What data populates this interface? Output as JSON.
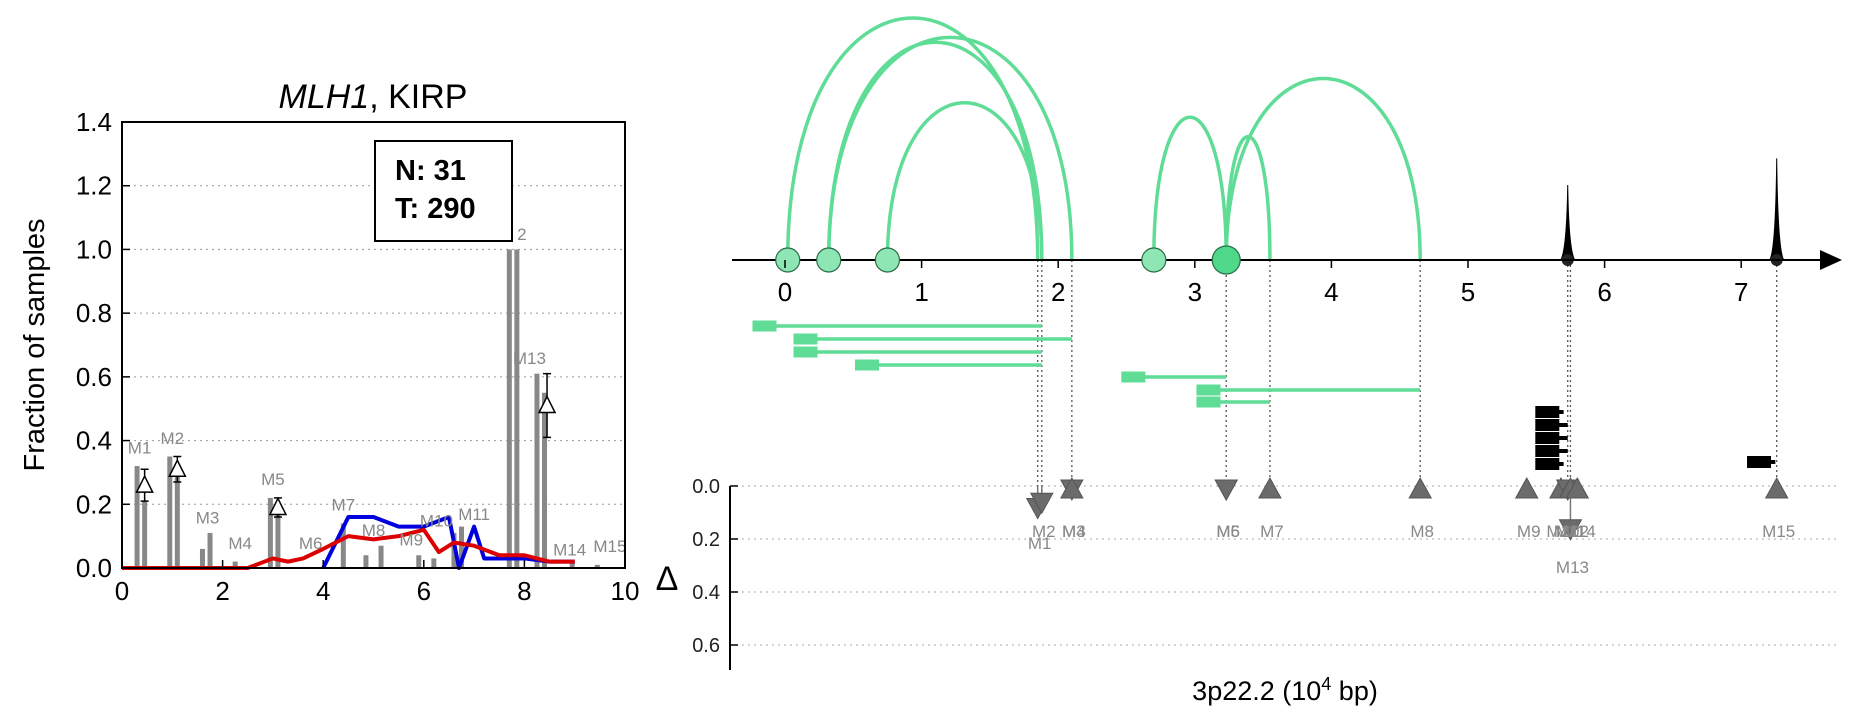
{
  "chart_data": [
    {
      "type": "bar",
      "title_gene": "MLH1",
      "title_rest": ", KIRP",
      "xlabel": "",
      "ylabel": "Fraction of samples",
      "xlim": [
        0,
        10
      ],
      "ylim": [
        0,
        1.4
      ],
      "xticks": [
        "0",
        "2",
        "4",
        "6",
        "8",
        "10"
      ],
      "yticks": [
        "0.0",
        "0.2",
        "0.4",
        "0.6",
        "0.8",
        "1.0",
        "1.2",
        "1.4"
      ],
      "grid": "horizontal dotted",
      "info_box": {
        "n_label": "N: 31",
        "t_label": "T: 290"
      },
      "bars": [
        {
          "x": 0.3,
          "value": 0.32
        },
        {
          "x": 0.45,
          "value": 0.21
        },
        {
          "x": 0.95,
          "value": 0.35
        },
        {
          "x": 1.1,
          "value": 0.31
        },
        {
          "x": 1.6,
          "value": 0.06
        },
        {
          "x": 1.75,
          "value": 0.11
        },
        {
          "x": 2.25,
          "value": 0.02
        },
        {
          "x": 2.95,
          "value": 0.22
        },
        {
          "x": 3.1,
          "value": 0.17
        },
        {
          "x": 4.4,
          "value": 0.14
        },
        {
          "x": 4.85,
          "value": 0.04
        },
        {
          "x": 5.15,
          "value": 0.07
        },
        {
          "x": 5.9,
          "value": 0.04
        },
        {
          "x": 6.2,
          "value": 0.03
        },
        {
          "x": 6.6,
          "value": 0.11
        },
        {
          "x": 6.75,
          "value": 0.13
        },
        {
          "x": 7.7,
          "value": 1.0
        },
        {
          "x": 7.85,
          "value": 1.0
        },
        {
          "x": 8.25,
          "value": 0.61
        },
        {
          "x": 8.4,
          "value": 0.55
        },
        {
          "x": 8.95,
          "value": 0.02
        },
        {
          "x": 9.45,
          "value": 0.01
        }
      ],
      "bar_labels": [
        {
          "text": "M1",
          "x": 0.35,
          "y": 0.36
        },
        {
          "text": "M2",
          "x": 1.0,
          "y": 0.39
        },
        {
          "text": "M3",
          "x": 1.7,
          "y": 0.14
        },
        {
          "text": "M4",
          "x": 2.35,
          "y": 0.06
        },
        {
          "text": "M5",
          "x": 3.0,
          "y": 0.26
        },
        {
          "text": "M6",
          "x": 3.75,
          "y": 0.06
        },
        {
          "text": "M7",
          "x": 4.4,
          "y": 0.18
        },
        {
          "text": "M8",
          "x": 5.0,
          "y": 0.1
        },
        {
          "text": "M9",
          "x": 5.75,
          "y": 0.07
        },
        {
          "text": "M10",
          "x": 6.25,
          "y": 0.13
        },
        {
          "text": "M11",
          "x": 7.0,
          "y": 0.15
        },
        {
          "text": "2",
          "x": 7.95,
          "y": 1.03
        },
        {
          "text": "M13",
          "x": 8.1,
          "y": 0.64
        },
        {
          "text": "M14",
          "x": 8.9,
          "y": 0.04
        },
        {
          "text": "M15",
          "x": 9.7,
          "y": 0.05
        }
      ],
      "delta_markers": [
        {
          "x": 0.45,
          "value": 0.26,
          "err": 0.05
        },
        {
          "x": 1.1,
          "value": 0.31,
          "err": 0.04
        },
        {
          "x": 3.1,
          "value": 0.19,
          "err": 0.03
        },
        {
          "x": 8.45,
          "value": 0.51,
          "err": 0.1
        }
      ],
      "series": [
        {
          "color": "#0000dd",
          "x": [
            4.0,
            4.5,
            5.0,
            5.5,
            6.0,
            6.5,
            6.7,
            7.0,
            7.2,
            7.5,
            8.0,
            8.5,
            9.0
          ],
          "values": [
            0.0,
            0.16,
            0.16,
            0.13,
            0.13,
            0.16,
            0.0,
            0.13,
            0.03,
            0.03,
            0.03,
            0.02,
            0.02
          ]
        },
        {
          "color": "#dd0000",
          "x": [
            0.0,
            1.0,
            2.0,
            2.5,
            3.0,
            3.3,
            3.6,
            4.0,
            4.5,
            5.0,
            5.5,
            6.0,
            6.3,
            6.6,
            7.0,
            7.5,
            8.0,
            8.5,
            9.0
          ],
          "values": [
            0.0,
            0.0,
            0.0,
            0.0,
            0.03,
            0.02,
            0.03,
            0.06,
            0.1,
            0.09,
            0.1,
            0.12,
            0.05,
            0.08,
            0.07,
            0.04,
            0.04,
            0.02,
            0.02
          ]
        }
      ]
    },
    {
      "type": "diagram",
      "xlabel_main": "3p22.2 (10",
      "xlabel_sup": "4",
      "xlabel_tail": " bp)",
      "delta_label": "Δ",
      "xlim": [
        -0.4,
        7.5
      ],
      "xticks": [
        "0",
        "1",
        "2",
        "3",
        "4",
        "5",
        "6",
        "7"
      ],
      "delta_ticks": [
        "0.0",
        "0.2",
        "0.4",
        "0.6"
      ],
      "arc_color": "#5fdc95",
      "nodes": [
        {
          "x": 0.02,
          "size": "medium"
        },
        {
          "x": 0.32,
          "size": "medium"
        },
        {
          "x": 0.75,
          "size": "medium"
        },
        {
          "x": 2.7,
          "size": "medium"
        },
        {
          "x": 3.23,
          "size": "large"
        }
      ],
      "arcs": [
        {
          "from": 0.02,
          "to": 1.85,
          "height": 1.0
        },
        {
          "from": 0.32,
          "to": 1.88,
          "height": 0.9
        },
        {
          "from": 0.32,
          "to": 2.1,
          "height": 0.92
        },
        {
          "from": 0.75,
          "to": 1.88,
          "height": 0.65
        },
        {
          "from": 2.7,
          "to": 3.23,
          "height": 0.59
        },
        {
          "from": 3.23,
          "to": 3.55,
          "height": 0.51
        },
        {
          "from": 3.23,
          "to": 4.65,
          "height": 0.75
        }
      ],
      "peaks": [
        {
          "x": 5.73,
          "height": 0.31
        },
        {
          "x": 7.26,
          "height": 0.42
        }
      ],
      "green_segments": [
        {
          "x1": -0.15,
          "x2": 1.88,
          "row": 0
        },
        {
          "x1": 0.15,
          "x2": 2.1,
          "row": 1
        },
        {
          "x1": 0.15,
          "x2": 1.88,
          "row": 2
        },
        {
          "x1": 0.6,
          "x2": 1.88,
          "row": 3
        },
        {
          "x1": 2.55,
          "x2": 3.23,
          "row": 4
        },
        {
          "x1": 3.1,
          "x2": 4.65,
          "row": 5
        },
        {
          "x1": 3.1,
          "x2": 3.55,
          "row": 6
        }
      ],
      "black_segments": [
        {
          "x1": 5.5,
          "x2": 5.7,
          "row": 0
        },
        {
          "x1": 5.5,
          "x2": 5.73,
          "row": 1
        },
        {
          "x1": 5.5,
          "x2": 5.73,
          "row": 2
        },
        {
          "x1": 5.5,
          "x2": 5.73,
          "row": 3
        },
        {
          "x1": 5.5,
          "x2": 5.7,
          "row": 4
        },
        {
          "x1": 7.05,
          "x2": 7.25,
          "row": 5
        }
      ],
      "vlines": [
        1.85,
        1.88,
        2.1,
        3.23,
        3.55,
        4.65,
        5.73,
        5.75,
        7.26
      ],
      "mutations": [
        {
          "label": "M1",
          "x": 1.85,
          "value": 0.07,
          "dir": "down",
          "label_row": 1
        },
        {
          "label": "M2",
          "x": 1.88,
          "value": 0.05,
          "dir": "down",
          "label_row": 0
        },
        {
          "label": "M3",
          "x": 2.1,
          "value": 0.0,
          "dir": "down",
          "label_row": 0
        },
        {
          "label": "M4",
          "x": 2.1,
          "value": 0.0,
          "dir": "up",
          "label_row": 0
        },
        {
          "label": "M5",
          "x": 3.23,
          "value": 0.0,
          "dir": "down",
          "label_row": 0
        },
        {
          "label": "M6",
          "x": 3.23,
          "value": 0.0,
          "dir": "down",
          "label_row": 0
        },
        {
          "label": "M7",
          "x": 3.55,
          "value": 0.0,
          "dir": "up",
          "label_row": 0
        },
        {
          "label": "M8",
          "x": 4.65,
          "value": 0.0,
          "dir": "up",
          "label_row": 0
        },
        {
          "label": "M9",
          "x": 5.43,
          "value": 0.0,
          "dir": "up",
          "label_row": 0
        },
        {
          "label": "M10",
          "x": 5.68,
          "value": 0.0,
          "dir": "up",
          "label_row": 0
        },
        {
          "label": "M11",
          "x": 5.73,
          "value": 0.0,
          "dir": "down",
          "label_row": 0
        },
        {
          "label": "M12",
          "x": 5.75,
          "value": 0.0,
          "dir": "up",
          "label_row": 0
        },
        {
          "label": "M13",
          "x": 5.75,
          "value": 0.15,
          "dir": "down",
          "label_row": 2
        },
        {
          "label": "M14",
          "x": 5.8,
          "value": 0.0,
          "dir": "up",
          "label_row": 0
        },
        {
          "label": "M15",
          "x": 7.26,
          "value": 0.0,
          "dir": "up",
          "label_row": 0
        }
      ]
    }
  ]
}
